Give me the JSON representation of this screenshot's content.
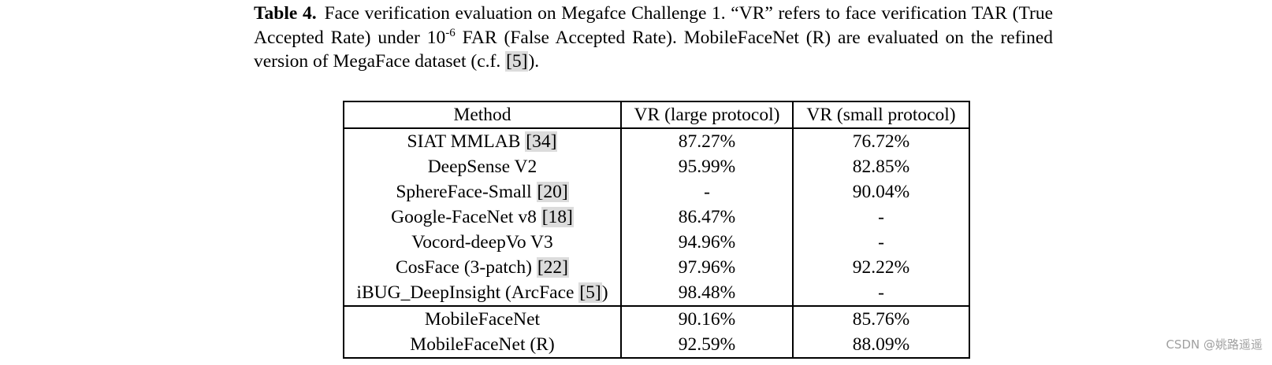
{
  "caption": {
    "label": "Table 4.",
    "text_before_sup": "Face verification evaluation on Megafce Challenge 1. “VR” refers to face verification TAR (True Accepted Rate) under 10",
    "sup": "-6",
    "text_after_sup": " FAR (False Accepted Rate). MobileFaceNet (R) are evaluated on the refined version of MegaFace dataset (c.f. ",
    "citation": "[5]",
    "text_end": ")."
  },
  "table": {
    "headers": [
      "Method",
      "VR (large protocol)",
      "VR (small protocol)"
    ],
    "rows": [
      {
        "method": "SIAT MMLAB ",
        "citation": "[34]",
        "method_suffix": "",
        "large": "87.27%",
        "small": "76.72%"
      },
      {
        "method": "DeepSense V2",
        "citation": "",
        "method_suffix": "",
        "large": "95.99%",
        "small": "82.85%"
      },
      {
        "method": "SphereFace-Small ",
        "citation": "[20]",
        "method_suffix": "",
        "large": "-",
        "small": "90.04%"
      },
      {
        "method": "Google-FaceNet v8 ",
        "citation": "[18]",
        "method_suffix": "",
        "large": "86.47%",
        "small": "-"
      },
      {
        "method": "Vocord-deepVo V3",
        "citation": "",
        "method_suffix": "",
        "large": "94.96%",
        "small": "-"
      },
      {
        "method": "CosFace (3-patch) ",
        "citation": "[22]",
        "method_suffix": "",
        "large": "97.96%",
        "small": "92.22%"
      },
      {
        "method": "iBUG_DeepInsight (ArcFace ",
        "citation": "[5]",
        "method_suffix": ")",
        "large": "98.48%",
        "small": "-"
      },
      {
        "method": "MobileFaceNet",
        "citation": "",
        "method_suffix": "",
        "large": "90.16%",
        "small": "85.76%"
      },
      {
        "method": "MobileFaceNet (R)",
        "citation": "",
        "method_suffix": "",
        "large": "92.59%",
        "small": "88.09%"
      }
    ]
  },
  "watermark": "CSDN @姚路遥遥"
}
